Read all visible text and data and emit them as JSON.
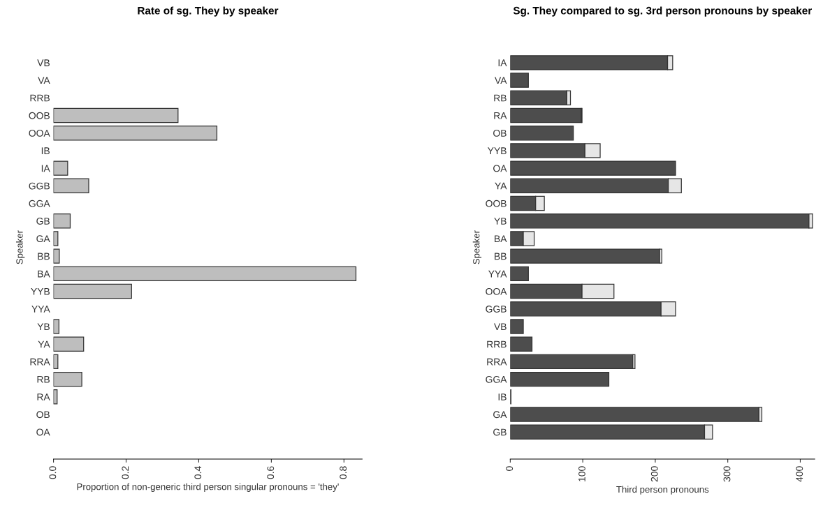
{
  "chart_data": [
    {
      "type": "bar",
      "orientation": "horizontal",
      "title": "Rate of sg. They by speaker",
      "xlabel": "Proportion of non-generic third person singular pronouns = 'they'",
      "ylabel": "Speaker",
      "categories": [
        "VB",
        "VA",
        "RRB",
        "OOB",
        "OOA",
        "IB",
        "IA",
        "GGB",
        "GGA",
        "GB",
        "GA",
        "BB",
        "BA",
        "YYB",
        "YYA",
        "YB",
        "YA",
        "RRA",
        "RB",
        "RA",
        "OB",
        "OA"
      ],
      "series": [
        {
          "color": "#bebebe",
          "values": [
            0,
            0,
            0,
            0.343,
            0.45,
            0,
            0.039,
            0.097,
            0,
            0.046,
            0.012,
            0.016,
            0.833,
            0.215,
            0,
            0.015,
            0.083,
            0.012,
            0.078,
            0.01,
            0,
            0
          ]
        }
      ],
      "xlim": [
        0,
        0.85
      ],
      "xticks": [
        {
          "value": 0,
          "label": "0.0"
        },
        0.2,
        0.4,
        0.6,
        0.8
      ],
      "grid": false,
      "legend": false
    },
    {
      "type": "bar",
      "orientation": "horizontal",
      "stacked": true,
      "title": "Sg. They compared to sg. 3rd person pronouns by speaker",
      "xlabel": "Third person pronouns",
      "ylabel": "Speaker",
      "categories": [
        "IA",
        "VA",
        "RB",
        "RA",
        "OB",
        "YYB",
        "OA",
        "YA",
        "OOB",
        "YB",
        "BA",
        "BB",
        "YYA",
        "OOA",
        "GGB",
        "VB",
        "RRB",
        "RRA",
        "GGA",
        "IB",
        "GA",
        "GB"
      ],
      "series": [
        {
          "color": "#4d4d4d",
          "values": [
            217,
            25,
            78,
            98,
            87,
            103,
            228,
            218,
            35,
            412,
            18,
            206,
            25,
            99,
            208,
            18,
            30,
            169,
            136,
            1,
            343,
            268
          ]
        },
        {
          "color": "#e6e6e6",
          "values": [
            7,
            0,
            5,
            1,
            0,
            21,
            0,
            18,
            12,
            5,
            15,
            3,
            0,
            44,
            20,
            0,
            0,
            3,
            0,
            0,
            4,
            11
          ]
        }
      ],
      "xlim": [
        0,
        420
      ],
      "xticks": [
        0,
        100,
        200,
        300,
        400
      ],
      "grid": false,
      "legend": false
    }
  ]
}
